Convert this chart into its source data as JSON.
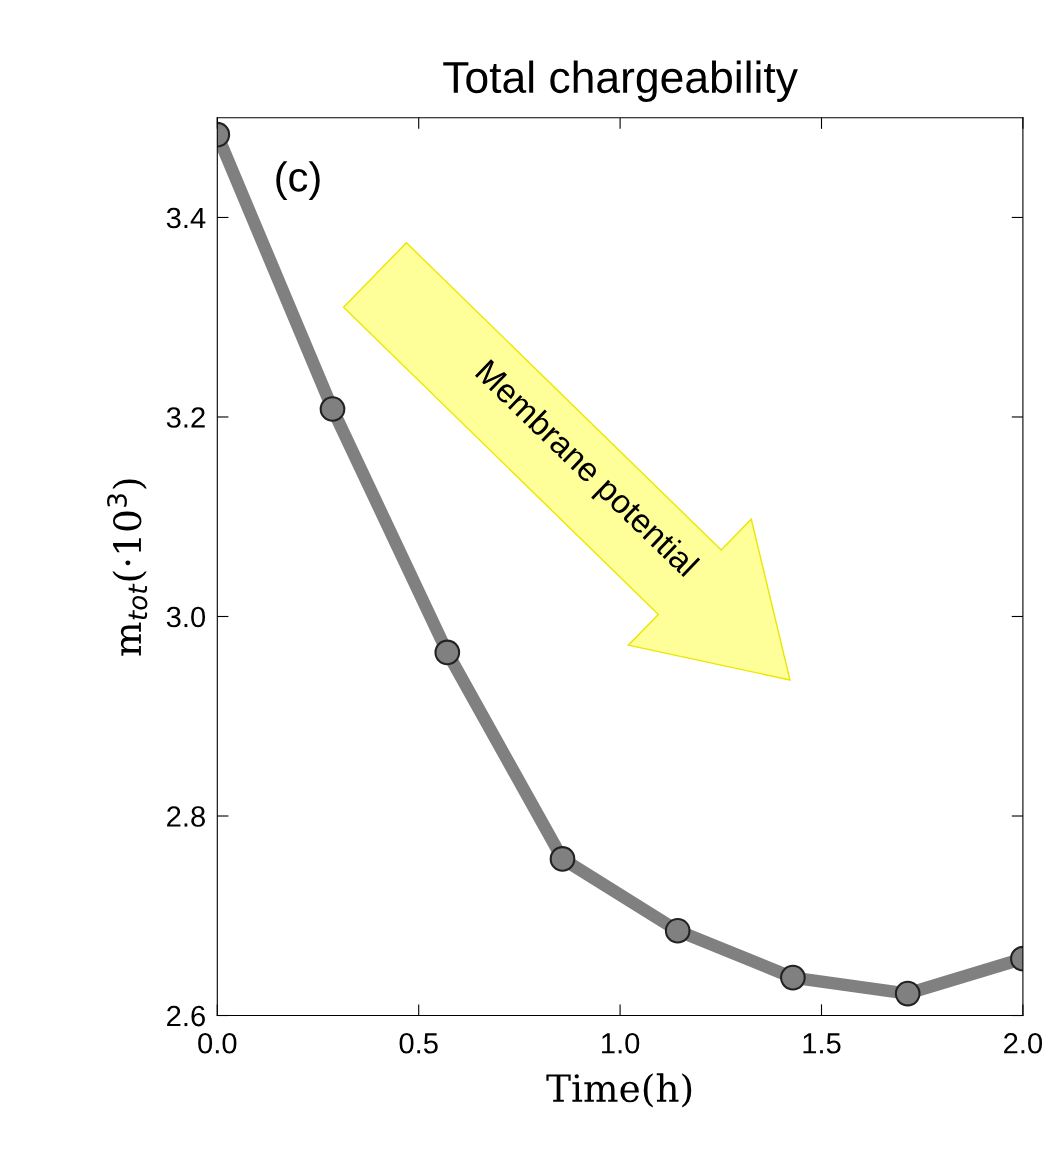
{
  "chart_data": {
    "type": "line",
    "title": "Total chargeability",
    "xlabel": "Time(h)",
    "ylabel": "m$_{tot}$(·10$^{3}$)",
    "x": [
      0,
      0.286,
      0.571,
      0.857,
      1.143,
      1.429,
      1.714,
      2.0
    ],
    "series": [
      {
        "color": "#808080",
        "values": [
          3.483,
          3.208,
          2.964,
          2.757,
          2.685,
          2.638,
          2.622,
          2.657
        ]
      }
    ],
    "xlim": [
      0,
      2.0
    ],
    "ylim": [
      2.6,
      3.5
    ],
    "xticks": [
      {
        "value": 0,
        "label": "0.0"
      },
      0.5,
      {
        "value": 1,
        "label": "1.0"
      },
      1.5,
      {
        "value": 2,
        "label": "2.0"
      }
    ],
    "yticks": [
      {
        "value": 2.6,
        "label": "2.6"
      },
      2.8,
      {
        "value": 3,
        "label": "3.0"
      },
      3.2,
      3.4
    ],
    "marker": "circle",
    "line_style": "solid",
    "grid": false,
    "legend": false,
    "annotations": [
      "(c)",
      "Membrane potential"
    ]
  }
}
